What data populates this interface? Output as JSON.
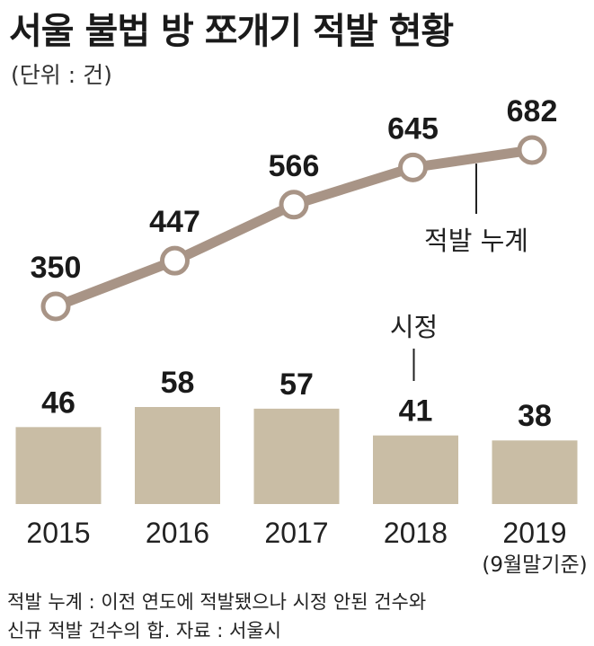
{
  "title": "서울 불법 방 쪼개기 적발 현황",
  "unit": "(단위 : 건)",
  "footnote": {
    "line1": "적발 누계 : 이전 연도에 적발됐으나 시정 안된 건수와",
    "line2": "신규 적발 건수의 합. 자료 : 서울시"
  },
  "colors": {
    "line": "#a89486",
    "bar": "#c9bda5",
    "marker_fill": "#ffffff"
  },
  "chart_data": {
    "type": "line+bar",
    "categories": [
      "2015",
      "2016",
      "2017",
      "2018",
      "2019"
    ],
    "category_notes": [
      "",
      "",
      "",
      "",
      "(9월말기준)"
    ],
    "series": [
      {
        "name": "적발 누계",
        "type": "line",
        "values": [
          350,
          447,
          566,
          645,
          682
        ]
      },
      {
        "name": "시정",
        "type": "bar",
        "values": [
          46,
          58,
          57,
          41,
          38
        ]
      }
    ]
  }
}
